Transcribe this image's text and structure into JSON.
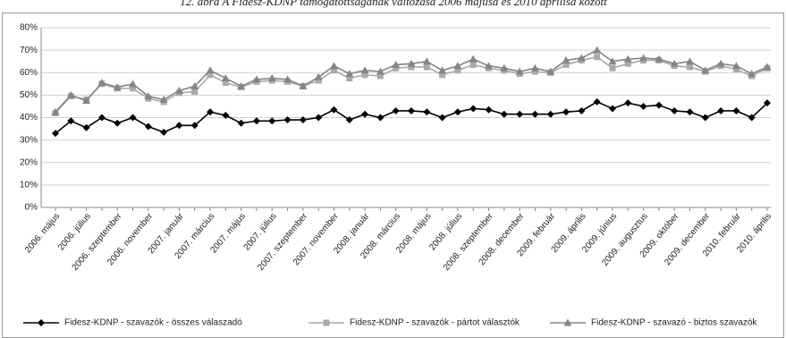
{
  "chart_data": {
    "type": "line",
    "title": "12. ábra A Fidesz-KDNP támogatottságának változása 2006 májusa és 2010 áprilisa között",
    "categories": [
      "2006. május",
      null,
      "2006. július",
      null,
      "2006. szeptember",
      null,
      "2006. november",
      null,
      "2007. január",
      null,
      "2007. március",
      null,
      "2007. május",
      null,
      "2007. július",
      null,
      "2007. szeptember",
      null,
      "2007. november",
      null,
      "2008. január",
      null,
      "2008. március",
      null,
      "2008. május",
      null,
      "2008. július",
      null,
      "2008. szeptember",
      null,
      "2008. december",
      null,
      "2009. február",
      null,
      "2009. április",
      null,
      "2009. június",
      null,
      "2009. augusztus",
      null,
      "2009. október",
      null,
      "2009. december",
      null,
      "2010. február",
      null,
      "2010. április"
    ],
    "series": [
      {
        "name": "Fidesz-KDNP - szavazók - összes válaszadó",
        "color": "#000000",
        "marker": "diamond",
        "values": [
          33,
          38.5,
          35.5,
          40,
          37.5,
          40,
          36,
          33.5,
          36.5,
          36.5,
          42.5,
          41,
          37.5,
          38.5,
          38.5,
          39,
          39,
          40,
          43.5,
          39,
          41.5,
          40,
          43,
          43,
          42.5,
          40,
          42.5,
          44,
          43.5,
          41.5,
          41.5,
          41.5,
          41.5,
          42.5,
          43,
          47,
          44,
          46.5,
          45,
          45.5,
          43,
          42.5,
          40,
          43,
          43,
          40,
          46.5
        ]
      },
      {
        "name": "Fidesz-KDNP - szavazók - pártot választók",
        "color": "#aaaaaa",
        "marker": "square",
        "values": [
          42,
          49.5,
          48,
          55,
          53,
          53,
          48.5,
          47,
          51,
          51.5,
          59,
          55.5,
          53.5,
          56,
          56.5,
          56,
          54,
          56.5,
          61,
          57.5,
          59,
          58.5,
          62,
          62.5,
          62.5,
          59,
          61,
          63.5,
          62,
          61,
          59.5,
          60.5,
          60,
          63.5,
          65.5,
          67,
          62,
          64,
          65.5,
          65.5,
          63,
          62.5,
          60.5,
          63,
          61.5,
          58.5,
          62
        ]
      },
      {
        "name": "Fidesz-KDNP - szavazó - biztos szavazók",
        "color": "#858585",
        "marker": "triangle",
        "values": [
          42.5,
          50,
          47.5,
          55.5,
          53.5,
          55,
          49.5,
          48,
          52,
          54,
          61,
          57.5,
          54,
          57,
          57.5,
          57,
          54,
          58,
          63,
          59.5,
          61,
          60.5,
          63.5,
          64,
          65,
          61,
          63,
          66,
          63,
          62,
          60.5,
          62,
          60.5,
          65.5,
          66.5,
          70,
          65,
          66,
          66.5,
          66,
          64,
          65,
          61,
          64,
          63,
          59.5,
          62.5
        ]
      }
    ],
    "ylim": [
      0,
      80
    ],
    "yticks": [
      {
        "value": 0,
        "label": "0%"
      },
      {
        "value": 10,
        "label": "10%"
      },
      {
        "value": 20,
        "label": "20%"
      },
      {
        "value": 30,
        "label": "30%"
      },
      {
        "value": 40,
        "label": "40%"
      },
      {
        "value": 50,
        "label": "50%"
      },
      {
        "value": 60,
        "label": "60%"
      },
      {
        "value": 70,
        "label": "70%"
      },
      {
        "value": 80,
        "label": "80%"
      }
    ],
    "grid": true,
    "legend": "bottom"
  }
}
